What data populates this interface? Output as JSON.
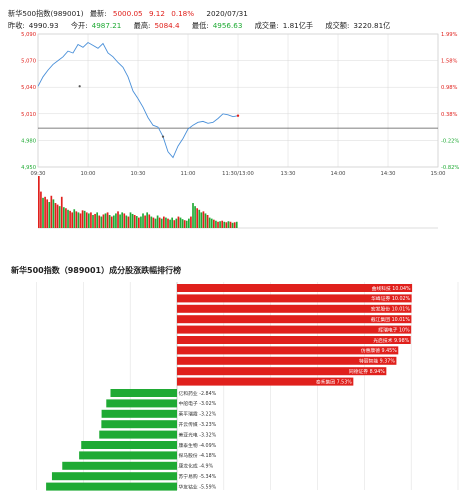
{
  "header": {
    "line1": {
      "title": "新华500指数(989001)",
      "latest_label": "最新:",
      "latest_value": "5000.05",
      "change": "9.12",
      "change_pct": "0.18%",
      "date": "2020/07/31"
    },
    "line2": {
      "prev_close_label": "昨收:",
      "prev_close": "4990.93",
      "open_label": "今开:",
      "open": "4987.21",
      "high_label": "最高:",
      "high": "5084.4",
      "low_label": "最低:",
      "low": "4956.63",
      "volume_label": "成交量:",
      "volume": "1.81亿手",
      "turnover_label": "成交额:",
      "turnover": "3220.81亿"
    }
  },
  "colors": {
    "up": "#e0201c",
    "down": "#1faa34",
    "line": "#4a90d9",
    "grid": "#d8d8d8"
  },
  "chart_data": [
    {
      "type": "line",
      "title": "",
      "x_ticks": [
        "09:30",
        "10:00",
        "10:30",
        "11:00",
        "11:30/13:00",
        "13:30",
        "14:00",
        "14:30",
        "15:00"
      ],
      "y_ticks_left": [
        "5,090",
        "5,070",
        "5,040",
        "5,010",
        "4,980",
        "4,950"
      ],
      "y_ticks_right": [
        "1.99%",
        "1.58%",
        "0.98%",
        "0.38%",
        "-0.22%",
        "-0.82%"
      ],
      "ylim": [
        4950,
        5090
      ],
      "prev_close": 4990.93,
      "series": [
        {
          "x_minutes": [
            0,
            3,
            6,
            9,
            12,
            15,
            18,
            21,
            24,
            27,
            30,
            33,
            36,
            39,
            42,
            45,
            48,
            51,
            54,
            57,
            60,
            63,
            66,
            69,
            72,
            75,
            78,
            81,
            84,
            87,
            90,
            93,
            96,
            99,
            102,
            105,
            108,
            111,
            114,
            117,
            120
          ],
          "values": [
            5035,
            5045,
            5052,
            5058,
            5062,
            5066,
            5072,
            5070,
            5079,
            5076,
            5081,
            5078,
            5075,
            5080,
            5070,
            5066,
            5060,
            5055,
            5045,
            5030,
            5022,
            5013,
            5002,
            4994,
            4992,
            4982,
            4966,
            4960,
            4972,
            4980,
            4990,
            4994,
            4997,
            4998,
            4996,
            4997,
            5001,
            5006,
            5005,
            5003,
            5004
          ]
        }
      ],
      "markers_minutes": [
        25,
        75
      ]
    },
    {
      "type": "bar",
      "title": "",
      "ylabel": "",
      "volume_bars": [
        {
          "v": 1.0,
          "up": 1
        },
        {
          "v": 0.7,
          "up": 1
        },
        {
          "v": 0.58,
          "up": 0
        },
        {
          "v": 0.6,
          "up": 1
        },
        {
          "v": 0.55,
          "up": 1
        },
        {
          "v": 0.5,
          "up": 0
        },
        {
          "v": 0.62,
          "up": 1
        },
        {
          "v": 0.55,
          "up": 0
        },
        {
          "v": 0.48,
          "up": 1
        },
        {
          "v": 0.45,
          "up": 1
        },
        {
          "v": 0.42,
          "up": 0
        },
        {
          "v": 0.6,
          "up": 1
        },
        {
          "v": 0.4,
          "up": 0
        },
        {
          "v": 0.38,
          "up": 1
        },
        {
          "v": 0.35,
          "up": 0
        },
        {
          "v": 0.33,
          "up": 1
        },
        {
          "v": 0.3,
          "up": 1
        },
        {
          "v": 0.36,
          "up": 0
        },
        {
          "v": 0.32,
          "up": 1
        },
        {
          "v": 0.3,
          "up": 0
        },
        {
          "v": 0.28,
          "up": 1
        },
        {
          "v": 0.34,
          "up": 1
        },
        {
          "v": 0.33,
          "up": 0
        },
        {
          "v": 0.3,
          "up": 1
        },
        {
          "v": 0.28,
          "up": 0
        },
        {
          "v": 0.3,
          "up": 1
        },
        {
          "v": 0.25,
          "up": 0
        },
        {
          "v": 0.27,
          "up": 1
        },
        {
          "v": 0.3,
          "up": 0
        },
        {
          "v": 0.24,
          "up": 1
        },
        {
          "v": 0.22,
          "up": 0
        },
        {
          "v": 0.26,
          "up": 1
        },
        {
          "v": 0.28,
          "up": 0
        },
        {
          "v": 0.3,
          "up": 1
        },
        {
          "v": 0.25,
          "up": 0
        },
        {
          "v": 0.22,
          "up": 1
        },
        {
          "v": 0.24,
          "up": 0
        },
        {
          "v": 0.28,
          "up": 0
        },
        {
          "v": 0.32,
          "up": 1
        },
        {
          "v": 0.26,
          "up": 0
        },
        {
          "v": 0.3,
          "up": 0
        },
        {
          "v": 0.28,
          "up": 1
        },
        {
          "v": 0.24,
          "up": 0
        },
        {
          "v": 0.22,
          "up": 1
        },
        {
          "v": 0.3,
          "up": 0
        },
        {
          "v": 0.27,
          "up": 0
        },
        {
          "v": 0.25,
          "up": 1
        },
        {
          "v": 0.23,
          "up": 0
        },
        {
          "v": 0.2,
          "up": 1
        },
        {
          "v": 0.22,
          "up": 0
        },
        {
          "v": 0.28,
          "up": 0
        },
        {
          "v": 0.24,
          "up": 1
        },
        {
          "v": 0.3,
          "up": 0
        },
        {
          "v": 0.26,
          "up": 1
        },
        {
          "v": 0.22,
          "up": 0
        },
        {
          "v": 0.2,
          "up": 1
        },
        {
          "v": 0.18,
          "up": 0
        },
        {
          "v": 0.24,
          "up": 0
        },
        {
          "v": 0.2,
          "up": 1
        },
        {
          "v": 0.18,
          "up": 0
        },
        {
          "v": 0.22,
          "up": 1
        },
        {
          "v": 0.2,
          "up": 0
        },
        {
          "v": 0.18,
          "up": 1
        },
        {
          "v": 0.16,
          "up": 0
        },
        {
          "v": 0.2,
          "up": 0
        },
        {
          "v": 0.15,
          "up": 1
        },
        {
          "v": 0.18,
          "up": 0
        },
        {
          "v": 0.22,
          "up": 1
        },
        {
          "v": 0.2,
          "up": 0
        },
        {
          "v": 0.17,
          "up": 0
        },
        {
          "v": 0.15,
          "up": 1
        },
        {
          "v": 0.14,
          "up": 0
        },
        {
          "v": 0.18,
          "up": 0
        },
        {
          "v": 0.22,
          "up": 1
        },
        {
          "v": 0.48,
          "up": 0
        },
        {
          "v": 0.42,
          "up": 0
        },
        {
          "v": 0.38,
          "up": 1
        },
        {
          "v": 0.35,
          "up": 0
        },
        {
          "v": 0.3,
          "up": 0
        },
        {
          "v": 0.32,
          "up": 1
        },
        {
          "v": 0.28,
          "up": 0
        },
        {
          "v": 0.25,
          "up": 1
        },
        {
          "v": 0.2,
          "up": 0
        },
        {
          "v": 0.18,
          "up": 0
        },
        {
          "v": 0.16,
          "up": 1
        },
        {
          "v": 0.14,
          "up": 0
        },
        {
          "v": 0.12,
          "up": 1
        },
        {
          "v": 0.13,
          "up": 0
        },
        {
          "v": 0.14,
          "up": 1
        },
        {
          "v": 0.12,
          "up": 0
        },
        {
          "v": 0.11,
          "up": 1
        },
        {
          "v": 0.13,
          "up": 0
        },
        {
          "v": 0.12,
          "up": 1
        },
        {
          "v": 0.1,
          "up": 0
        },
        {
          "v": 0.11,
          "up": 1
        },
        {
          "v": 0.12,
          "up": 0
        }
      ]
    },
    {
      "type": "bar",
      "title": "新华500指数（989001）成分股涨跌幅排行榜",
      "orientation": "horizontal",
      "xlim": [
        -7,
        12
      ],
      "gainers": [
        {
          "name": "曲线科技",
          "pct": 10.04
        },
        {
          "name": "华峰证券",
          "pct": 10.02
        },
        {
          "name": "宏发股份",
          "pct": 10.01
        },
        {
          "name": "截江集团",
          "pct": 10.01
        },
        {
          "name": "辉瑞电子",
          "pct": 10
        },
        {
          "name": "光启技术",
          "pct": 9.98
        },
        {
          "name": "仿惠康德",
          "pct": 9.45
        },
        {
          "name": "特丽智能",
          "pct": 9.37
        },
        {
          "name": "同德证券",
          "pct": 8.94
        },
        {
          "name": "泰禾集团",
          "pct": 7.53
        }
      ],
      "losers": [
        {
          "name": "亿和药业",
          "pct": -2.84
        },
        {
          "name": "中船电子",
          "pct": -3.02
        },
        {
          "name": "莱平瑞霞",
          "pct": -3.22
        },
        {
          "name": "开云传媒",
          "pct": -3.23
        },
        {
          "name": "美亚光电",
          "pct": -3.32
        },
        {
          "name": "康泰生物",
          "pct": -4.09
        },
        {
          "name": "探马股份",
          "pct": -4.18
        },
        {
          "name": "康龙化成",
          "pct": -4.9
        },
        {
          "name": "苏宁易购",
          "pct": -5.34
        },
        {
          "name": "华友钴业",
          "pct": -5.59
        }
      ],
      "gainer_labels": [
        "曲线科技 10.04%",
        "华峰证券 10.02%",
        "宏发股份 10.01%",
        "截江集团 10.01%",
        "辉瑞电子 10%",
        "光启技术 9.98%",
        "仿惠康德 9.45%",
        "特丽智能 9.37%",
        "同德证券 8.94%",
        "泰禾集团 7.53%"
      ],
      "loser_labels": [
        "亿和药业 -2.84%",
        "中船电子 -3.02%",
        "莱平瑞霞 -3.22%",
        "开云传媒 -3.23%",
        "美亚光电 -3.32%",
        "康泰生物 -4.09%",
        "探马股份 -4.18%",
        "康龙化成 -4.9%",
        "苏宁易购 -5.34%",
        "华友钴业 -5.59%"
      ]
    }
  ]
}
